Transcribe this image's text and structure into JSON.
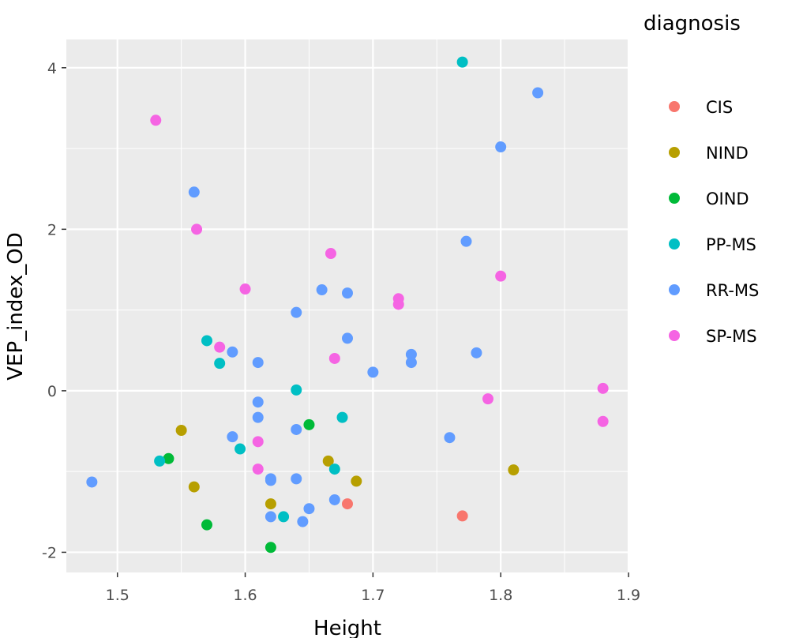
{
  "chart_data": {
    "type": "scatter",
    "xlabel": "Height",
    "ylabel": "VEP_index_OD",
    "xlim": [
      1.46,
      1.9
    ],
    "ylim": [
      -2.25,
      4.35
    ],
    "xticks": [
      {
        "value": 1.5,
        "label": "1.5"
      },
      {
        "value": 1.6,
        "label": "1.6"
      },
      {
        "value": 1.7,
        "label": "1.7"
      },
      {
        "value": 1.8,
        "label": "1.8"
      },
      {
        "value": 1.9,
        "label": "1.9"
      }
    ],
    "yticks": [
      {
        "value": -2,
        "label": "-2"
      },
      {
        "value": 0,
        "label": "0"
      },
      {
        "value": 2,
        "label": "2"
      },
      {
        "value": 4,
        "label": "4"
      }
    ],
    "grid": true,
    "legend": {
      "title": "diagnosis",
      "placement": "right"
    },
    "series": [
      {
        "name": "CIS",
        "color": "#F8766D",
        "points": [
          [
            1.68,
            -1.4
          ],
          [
            1.77,
            -1.55
          ]
        ]
      },
      {
        "name": "NIND",
        "color": "#B79F00",
        "points": [
          [
            1.55,
            -0.49
          ],
          [
            1.56,
            -1.19
          ],
          [
            1.62,
            -1.4
          ],
          [
            1.665,
            -0.87
          ],
          [
            1.687,
            -1.12
          ],
          [
            1.81,
            -0.98
          ]
        ]
      },
      {
        "name": "OIND",
        "color": "#00BA38",
        "points": [
          [
            1.54,
            -0.84
          ],
          [
            1.57,
            -1.66
          ],
          [
            1.62,
            -1.94
          ],
          [
            1.65,
            -0.42
          ]
        ]
      },
      {
        "name": "PP-MS",
        "color": "#00BFC4",
        "points": [
          [
            1.533,
            -0.87
          ],
          [
            1.57,
            0.62
          ],
          [
            1.58,
            0.34
          ],
          [
            1.596,
            -0.72
          ],
          [
            1.63,
            -1.56
          ],
          [
            1.64,
            0.01
          ],
          [
            1.67,
            -0.97
          ],
          [
            1.676,
            -0.33
          ],
          [
            1.77,
            4.07
          ]
        ]
      },
      {
        "name": "RR-MS",
        "color": "#619CFF",
        "points": [
          [
            1.48,
            -1.13
          ],
          [
            1.56,
            2.46
          ],
          [
            1.59,
            0.48
          ],
          [
            1.59,
            -0.57
          ],
          [
            1.61,
            0.35
          ],
          [
            1.61,
            -0.14
          ],
          [
            1.61,
            -0.33
          ],
          [
            1.62,
            -1.09
          ],
          [
            1.62,
            -1.11
          ],
          [
            1.62,
            -1.56
          ],
          [
            1.64,
            0.97
          ],
          [
            1.64,
            -0.48
          ],
          [
            1.64,
            -1.09
          ],
          [
            1.645,
            -1.62
          ],
          [
            1.65,
            -1.46
          ],
          [
            1.66,
            1.25
          ],
          [
            1.67,
            -1.35
          ],
          [
            1.68,
            1.21
          ],
          [
            1.68,
            0.65
          ],
          [
            1.7,
            0.23
          ],
          [
            1.73,
            0.45
          ],
          [
            1.73,
            0.35
          ],
          [
            1.76,
            -0.58
          ],
          [
            1.773,
            1.85
          ],
          [
            1.781,
            0.47
          ],
          [
            1.8,
            3.02
          ],
          [
            1.829,
            3.69
          ]
        ]
      },
      {
        "name": "SP-MS",
        "color": "#F564E3",
        "points": [
          [
            1.53,
            3.35
          ],
          [
            1.562,
            2.0
          ],
          [
            1.58,
            0.54
          ],
          [
            1.6,
            1.26
          ],
          [
            1.61,
            -0.63
          ],
          [
            1.61,
            -0.97
          ],
          [
            1.667,
            1.7
          ],
          [
            1.67,
            0.4
          ],
          [
            1.72,
            1.14
          ],
          [
            1.72,
            1.07
          ],
          [
            1.79,
            -0.1
          ],
          [
            1.8,
            1.42
          ],
          [
            1.88,
            0.03
          ],
          [
            1.88,
            -0.38
          ]
        ]
      }
    ]
  }
}
